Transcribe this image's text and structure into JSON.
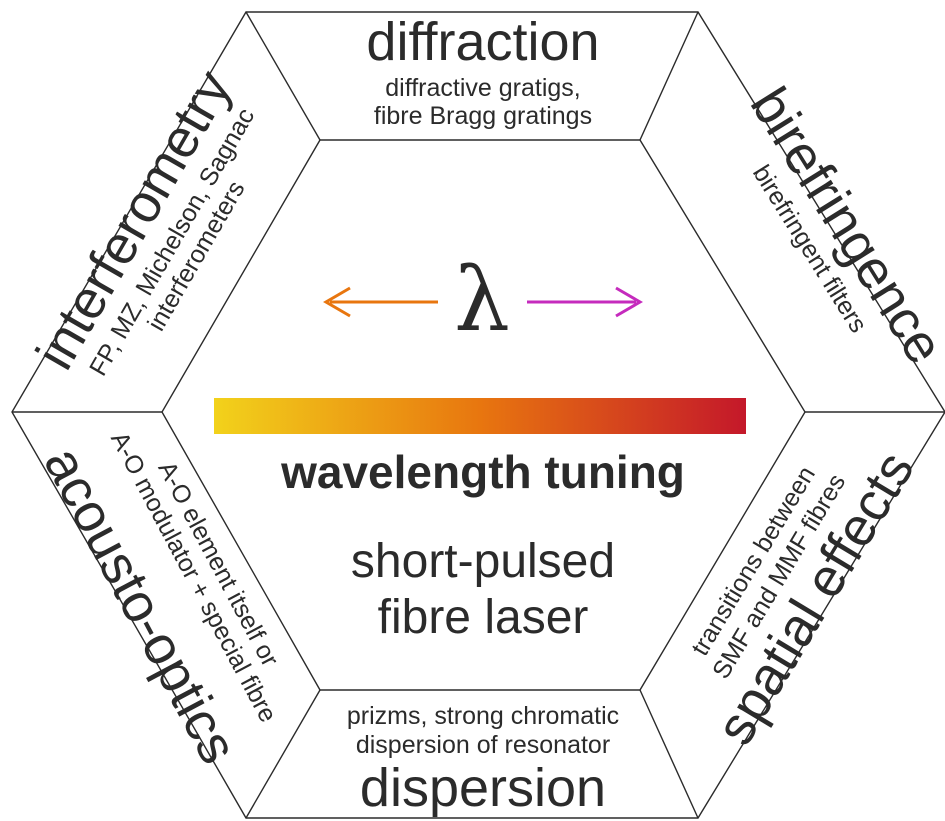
{
  "sections": {
    "diffraction": {
      "title": "diffraction",
      "lines": [
        "diffractive gratigs,",
        "fibre Bragg gratings"
      ]
    },
    "birefringence": {
      "title": "birefringence",
      "lines": [
        "birefringent filters"
      ]
    },
    "spatial_effects": {
      "title": "spatial effects",
      "lines": [
        "transitions between",
        "SMF and MMF fibres"
      ]
    },
    "dispersion": {
      "title": "dispersion",
      "lines": [
        "prizms, strong chromatic",
        "dispersion of resonator"
      ]
    },
    "acousto_optics": {
      "title": "acousto-optics",
      "lines": [
        "A-O element itself or",
        "A-O modulator + special fibre"
      ]
    },
    "interferometry": {
      "title": "interferometry",
      "lines": [
        "FP, MZ, Michelson, Sagnac",
        "interferometers"
      ]
    }
  },
  "center": {
    "symbol": "λ",
    "heading": "wavelength tuning",
    "subtitle_lines": [
      "short-pulsed",
      "fibre laser"
    ]
  },
  "colors": {
    "arrow_left": "#e8760f",
    "arrow_right": "#c52bbd",
    "gradient_start": "#f2d21b",
    "gradient_mid": "#e8760f",
    "gradient_end": "#c4182a",
    "line": "#2b2b2b"
  }
}
